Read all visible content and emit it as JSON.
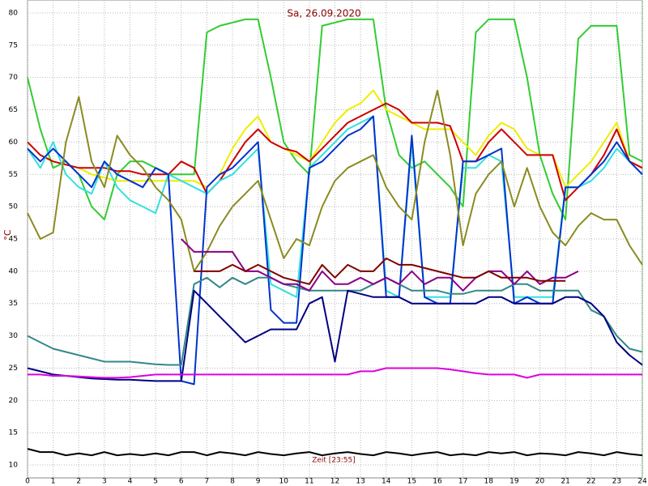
{
  "chart_data": {
    "type": "line",
    "title": "Sa, 26.09.2020",
    "y_label": "°C",
    "annotation": "Zeit [23:55]",
    "x": [
      0,
      0.5,
      1,
      1.5,
      2,
      2.5,
      3,
      3.5,
      4,
      4.5,
      5,
      5.5,
      6,
      6.5,
      7,
      7.5,
      8,
      8.5,
      9,
      9.5,
      10,
      10.5,
      11,
      11.5,
      12,
      12.5,
      13,
      13.5,
      14,
      14.5,
      15,
      15.5,
      16,
      16.5,
      17,
      17.5,
      18,
      18.5,
      19,
      19.5,
      20,
      20.5,
      21,
      21.5,
      22,
      22.5,
      23,
      23.5,
      24
    ],
    "xlim": [
      0,
      24
    ],
    "xticks": [
      0,
      1,
      2,
      3,
      4,
      5,
      6,
      7,
      8,
      9,
      10,
      11,
      12,
      13,
      14,
      15,
      16,
      17,
      18,
      19,
      20,
      21,
      22,
      23,
      24
    ],
    "ylim": [
      8,
      82
    ],
    "yticks": [
      10,
      15,
      20,
      25,
      30,
      35,
      40,
      45,
      50,
      55,
      60,
      65,
      70,
      75,
      80
    ],
    "grid": true,
    "series": [
      {
        "color": "#33cc33",
        "values": [
          70,
          62,
          56,
          57,
          55,
          50,
          48,
          55,
          57,
          57,
          56,
          55,
          55,
          55,
          77,
          78,
          78.5,
          79,
          79,
          70,
          60,
          57,
          55,
          78,
          78.5,
          79,
          79,
          79,
          65,
          58,
          56,
          57,
          55,
          53,
          50,
          77,
          79,
          79,
          79,
          70,
          58,
          52,
          48,
          76,
          78,
          78,
          78,
          58,
          57
        ]
      },
      {
        "color": "#eeee00",
        "values": [
          60,
          58,
          57,
          56.5,
          56,
          55,
          54.5,
          54,
          54,
          54,
          54,
          54,
          54,
          54,
          53,
          55,
          59,
          62,
          64,
          60,
          59,
          58,
          57,
          60,
          63,
          65,
          66,
          68,
          65,
          64,
          63,
          62,
          62,
          62,
          60,
          58,
          61,
          63,
          62,
          59,
          58,
          58,
          53,
          55,
          57,
          60,
          63,
          57,
          56
        ]
      },
      {
        "color": "#cc0000",
        "values": [
          60,
          58,
          57,
          56.5,
          56,
          56,
          56,
          55.5,
          55.5,
          55,
          55,
          55,
          57,
          56,
          52,
          54,
          57,
          60,
          62,
          60,
          59,
          58.5,
          57,
          59,
          61,
          63,
          64,
          65,
          66,
          65,
          63,
          63,
          63,
          62.5,
          57,
          57,
          60,
          62,
          60,
          58,
          58,
          58,
          51,
          53,
          55,
          58,
          62,
          57,
          56
        ]
      },
      {
        "color": "#33e0e0",
        "values": [
          59,
          56,
          60,
          55,
          53,
          52,
          57,
          53,
          51,
          50,
          49,
          55,
          54,
          53,
          52,
          54,
          55,
          57,
          59,
          38,
          37,
          36,
          56,
          58,
          60,
          62,
          63,
          64,
          37,
          36,
          60,
          36,
          36,
          36,
          56,
          56,
          58,
          57,
          36,
          36,
          36,
          36,
          53,
          53,
          54,
          56,
          59,
          57,
          55
        ]
      },
      {
        "color": "#0033cc",
        "values": [
          59,
          57,
          59,
          57,
          55,
          53,
          57,
          55,
          54,
          53,
          56,
          55,
          23,
          22.5,
          53,
          55,
          56,
          58,
          60,
          34,
          32,
          32,
          56,
          57,
          59,
          61,
          62,
          64,
          36,
          36,
          61,
          36,
          35,
          35,
          57,
          57,
          58,
          59,
          35,
          36,
          35,
          35,
          53,
          53,
          55,
          57,
          60,
          57,
          55
        ]
      },
      {
        "color": "#8b8b22",
        "values": [
          49,
          45,
          46,
          60,
          67,
          57,
          53,
          61,
          58,
          56,
          53,
          51,
          48,
          40,
          43,
          47,
          50,
          52,
          54,
          48,
          42,
          45,
          44,
          50,
          54,
          56,
          57,
          58,
          53,
          50,
          48,
          60,
          68,
          58,
          44,
          52,
          55,
          57,
          50,
          56,
          50,
          46,
          44,
          47,
          49,
          48,
          48,
          44,
          41
        ]
      },
      {
        "color": "#338888",
        "values": [
          30,
          29,
          28,
          27.5,
          27,
          26.5,
          26,
          26,
          26,
          25.8,
          25.6,
          25.5,
          25.5,
          38,
          39,
          37.5,
          39,
          38,
          39,
          39,
          38,
          37.5,
          37,
          37,
          37,
          37,
          37,
          38,
          39,
          38,
          37,
          37,
          37,
          36.5,
          36.5,
          37,
          37,
          37,
          38,
          38,
          37,
          37,
          37,
          37,
          34,
          33,
          30,
          28,
          27.5
        ]
      },
      {
        "color": "#000080",
        "values": [
          25,
          24.5,
          24,
          23.8,
          23.6,
          23.4,
          23.3,
          23.2,
          23.2,
          23.1,
          23,
          23,
          23,
          37,
          35,
          33,
          31,
          29,
          30,
          31,
          31,
          31,
          35,
          36,
          26,
          37,
          36.5,
          36,
          36,
          36,
          35,
          35,
          35,
          35,
          35,
          35,
          36,
          36,
          35,
          35,
          35,
          35,
          36,
          36,
          35,
          33,
          29,
          27,
          25.5
        ]
      },
      {
        "color": "#880088",
        "values": [
          null,
          null,
          null,
          null,
          null,
          null,
          null,
          null,
          null,
          null,
          null,
          null,
          45,
          43,
          43,
          43,
          43,
          40,
          40,
          39,
          38,
          38,
          37,
          40,
          38,
          38,
          39,
          38,
          39,
          38,
          40,
          38,
          39,
          39,
          37,
          39,
          40,
          40,
          38,
          40,
          38,
          39,
          39,
          40,
          null,
          null,
          null,
          null,
          null
        ]
      },
      {
        "color": "#800000",
        "values": [
          null,
          null,
          null,
          null,
          null,
          null,
          null,
          null,
          null,
          null,
          null,
          null,
          null,
          40,
          40,
          40,
          41,
          40,
          41,
          40,
          39,
          38.5,
          38,
          41,
          39,
          41,
          40,
          40,
          42,
          41,
          41,
          40.5,
          40,
          39.5,
          39,
          39,
          40,
          39,
          39,
          39,
          38.5,
          38.5,
          38.5,
          null,
          null,
          null,
          null,
          null,
          null
        ]
      },
      {
        "color": "#dd00dd",
        "values": [
          24,
          24,
          23.8,
          23.8,
          23.7,
          23.6,
          23.5,
          23.5,
          23.6,
          23.8,
          24,
          24,
          24,
          24,
          24,
          24,
          24,
          24,
          24,
          24,
          24,
          24,
          24,
          24,
          24,
          24,
          24.5,
          24.5,
          25,
          25,
          25,
          25,
          25,
          24.8,
          24.5,
          24.2,
          24,
          24,
          24,
          23.5,
          24,
          24,
          24,
          24,
          24,
          24,
          24,
          24,
          24
        ]
      },
      {
        "color": "#000000",
        "values": [
          12.5,
          12,
          12,
          11.5,
          11.8,
          11.5,
          12,
          11.5,
          11.7,
          11.5,
          11.8,
          11.5,
          12,
          12,
          11.5,
          12,
          11.8,
          11.5,
          12,
          11.7,
          11.5,
          11.8,
          12,
          11.5,
          11.8,
          12,
          11.7,
          11.5,
          12,
          11.8,
          11.5,
          11.8,
          12,
          11.5,
          11.7,
          11.5,
          12,
          11.8,
          12,
          11.5,
          11.8,
          11.7,
          11.5,
          12,
          11.8,
          11.5,
          12,
          11.7,
          11.5
        ]
      }
    ]
  }
}
